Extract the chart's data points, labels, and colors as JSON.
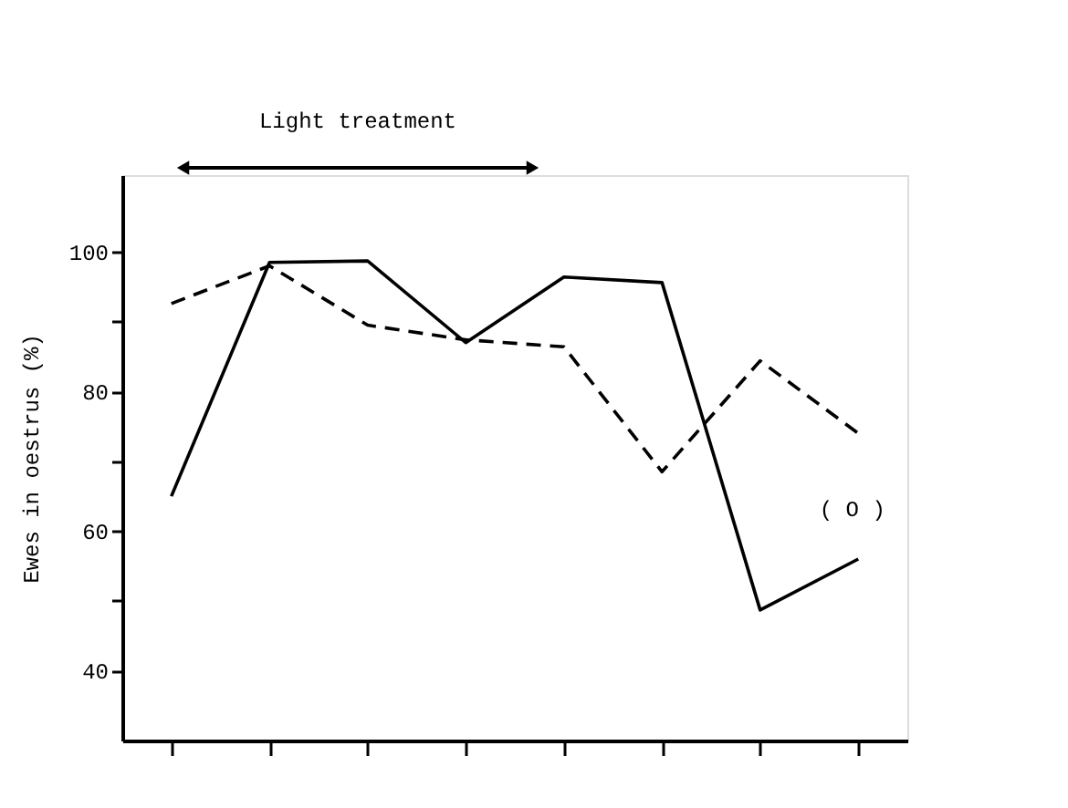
{
  "chart_data": {
    "type": "line",
    "ylabel": "Ewes in oestrus (%)",
    "categories": [
      null,
      null,
      null,
      null,
      null,
      null,
      null,
      null
    ],
    "series": [
      {
        "color": "#000000",
        "line_style": "solid",
        "values": [
          65,
          98.5,
          98.7,
          87,
          96.4,
          95.6,
          48.7,
          56
        ]
      },
      {
        "color": "#000000",
        "line_style": "dashed",
        "values": [
          92.6,
          98,
          89.5,
          87.4,
          86.4,
          68.5,
          84.4,
          74
        ]
      }
    ],
    "ylim": [
      30,
      111
    ],
    "yticks": [
      40,
      {
        "value": 50,
        "label": null
      },
      60,
      {
        "value": 70,
        "label": null
      },
      80,
      {
        "value": 90,
        "label": null
      },
      100
    ],
    "annotations": [
      "Light treatment",
      "( O )"
    ],
    "grid": false,
    "marker": "none"
  }
}
